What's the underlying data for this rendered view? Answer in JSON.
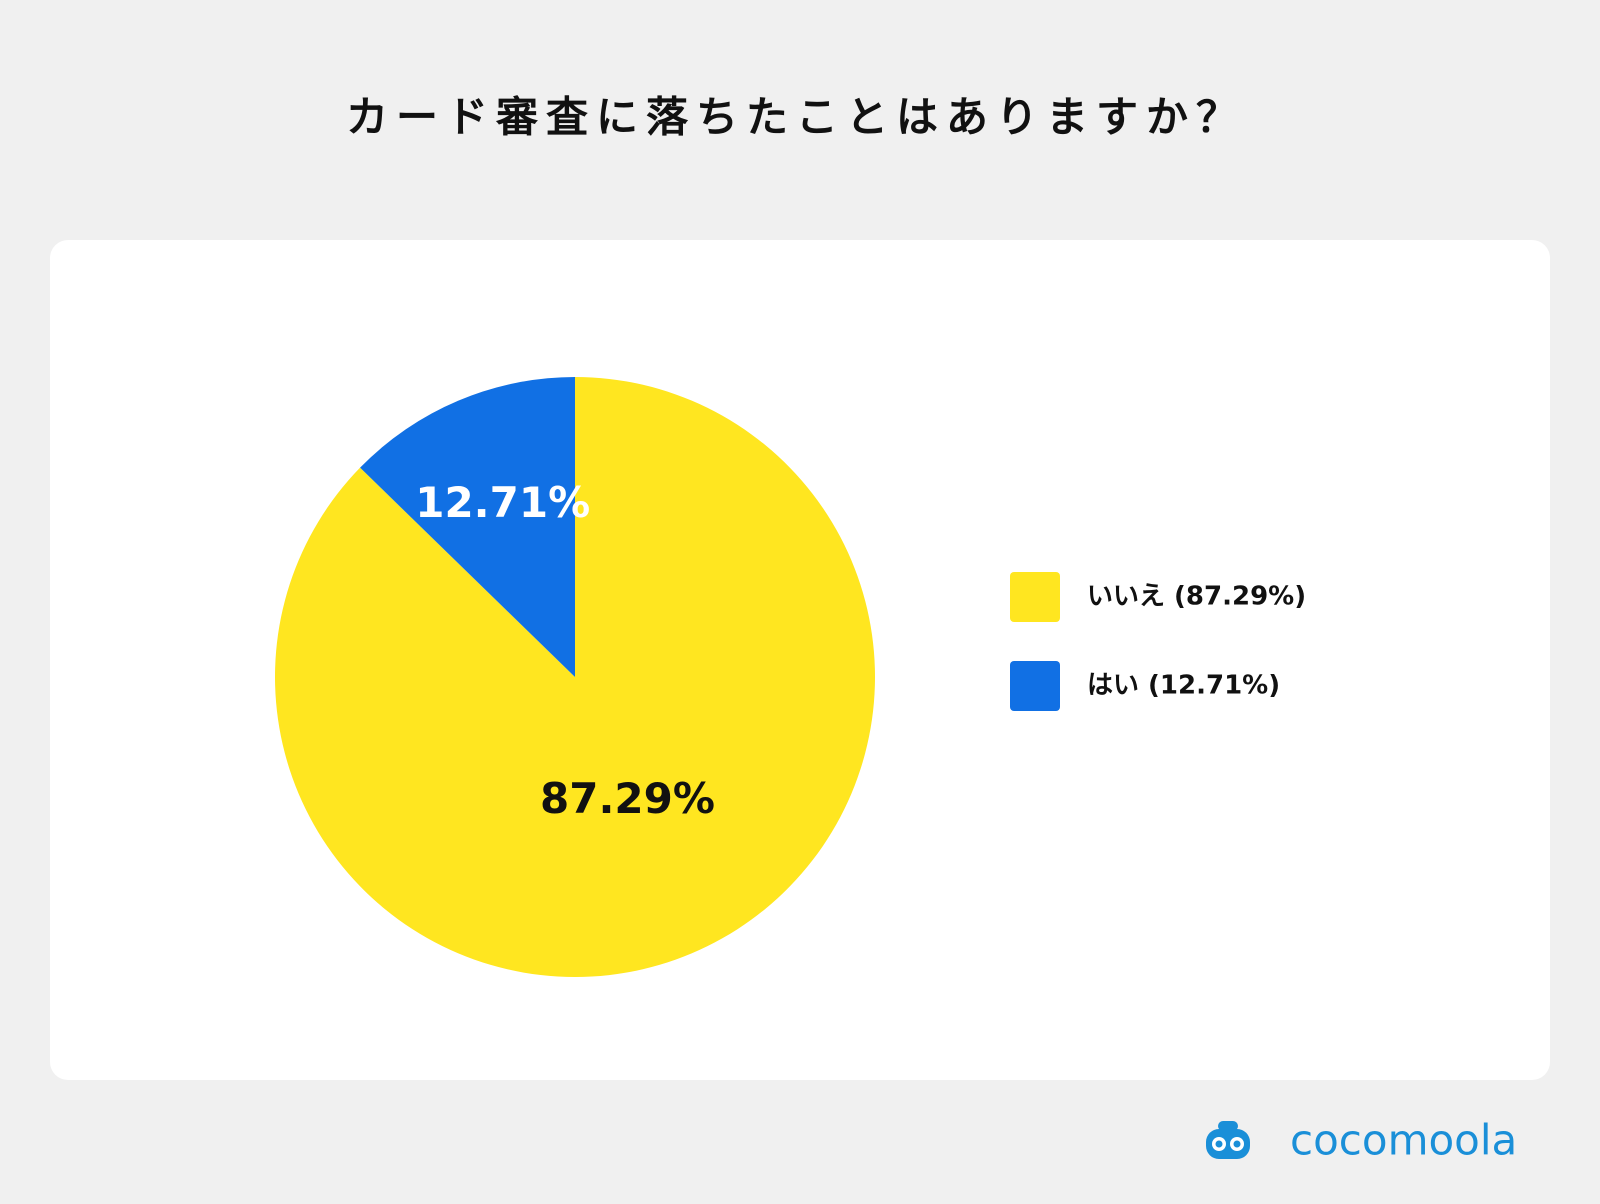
{
  "chart_data": {
    "type": "pie",
    "title": "カード審査に落ちたことはありますか？",
    "categories": [
      "いいえ (87.29%)",
      "はい (12.71%)"
    ],
    "values": [
      87.29,
      12.71
    ],
    "value_labels": [
      "87.29%",
      "12.71%"
    ],
    "colors": [
      "#FFE620",
      "#1170E4"
    ],
    "legend": "right"
  },
  "logo": "cocomoola"
}
